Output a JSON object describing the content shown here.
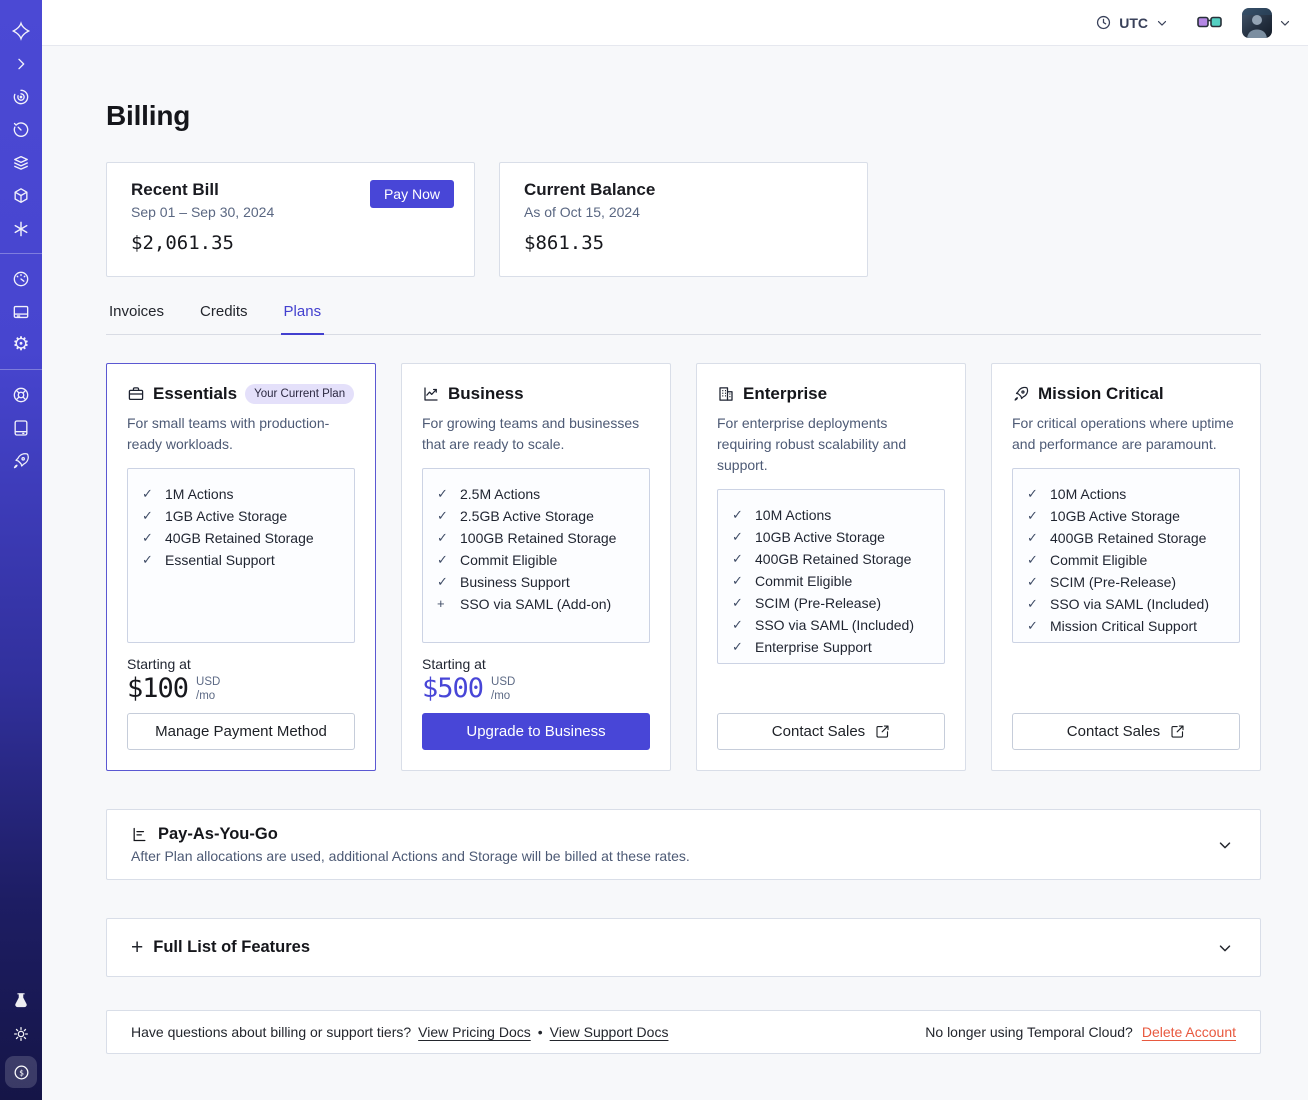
{
  "topbar": {
    "timezone": "UTC"
  },
  "page": {
    "title": "Billing"
  },
  "summary": {
    "recent_bill": {
      "title": "Recent Bill",
      "period": "Sep 01 – Sep 30, 2024",
      "amount": "$2,061.35",
      "pay_now": "Pay Now"
    },
    "current_balance": {
      "title": "Current Balance",
      "as_of": "As of Oct 15, 2024",
      "amount": "$861.35"
    }
  },
  "tabs": [
    {
      "label": "Invoices",
      "active": false
    },
    {
      "label": "Credits",
      "active": false
    },
    {
      "label": "Plans",
      "active": true
    }
  ],
  "plans": [
    {
      "name": "Essentials",
      "badge": "Your Current Plan",
      "description": "For small teams with production-ready workloads.",
      "features": [
        {
          "mark": "check",
          "label": "1M Actions"
        },
        {
          "mark": "check",
          "label": "1GB Active Storage"
        },
        {
          "mark": "check",
          "label": "40GB Retained Storage"
        },
        {
          "mark": "check",
          "label": "Essential Support"
        }
      ],
      "starting_at": "Starting at",
      "price": "$100",
      "currency": "USD",
      "per": "/mo",
      "button": "Manage Payment Method"
    },
    {
      "name": "Business",
      "description": "For growing teams and businesses that are ready to scale.",
      "features": [
        {
          "mark": "check",
          "label": "2.5M Actions"
        },
        {
          "mark": "check",
          "label": "2.5GB Active Storage"
        },
        {
          "mark": "check",
          "label": "100GB Retained Storage"
        },
        {
          "mark": "check",
          "label": "Commit Eligible"
        },
        {
          "mark": "check",
          "label": "Business Support"
        },
        {
          "mark": "plus",
          "label": "SSO via SAML (Add-on)"
        }
      ],
      "starting_at": "Starting at",
      "price": "$500",
      "currency": "USD",
      "per": "/mo",
      "button": "Upgrade to Business"
    },
    {
      "name": "Enterprise",
      "description": "For enterprise deployments requiring robust scalability and support.",
      "features": [
        {
          "mark": "check",
          "label": "10M Actions"
        },
        {
          "mark": "check",
          "label": "10GB Active Storage"
        },
        {
          "mark": "check",
          "label": "400GB Retained Storage"
        },
        {
          "mark": "check",
          "label": "Commit Eligible"
        },
        {
          "mark": "check",
          "label": "SCIM (Pre-Release)"
        },
        {
          "mark": "check",
          "label": "SSO via SAML (Included)"
        },
        {
          "mark": "check",
          "label": "Enterprise Support"
        }
      ],
      "button": "Contact Sales"
    },
    {
      "name": "Mission Critical",
      "description": "For critical operations where uptime and performance are paramount.",
      "features": [
        {
          "mark": "check",
          "label": "10M Actions"
        },
        {
          "mark": "check",
          "label": "10GB Active Storage"
        },
        {
          "mark": "check",
          "label": "400GB Retained Storage"
        },
        {
          "mark": "check",
          "label": "Commit Eligible"
        },
        {
          "mark": "check",
          "label": "SCIM (Pre-Release)"
        },
        {
          "mark": "check",
          "label": "SSO via SAML (Included)"
        },
        {
          "mark": "check",
          "label": "Mission Critical Support"
        }
      ],
      "button": "Contact Sales"
    }
  ],
  "accordions": [
    {
      "title": "Pay-As-You-Go",
      "subtitle": "After Plan allocations are used, additional Actions and Storage will be billed at these rates."
    },
    {
      "title": "Full List of Features"
    }
  ],
  "footer": {
    "question": "Have questions about billing or support tiers?",
    "pricing_link": "View Pricing Docs",
    "separator": "•",
    "support_link": "View Support Docs",
    "delete_prompt": "No longer using Temporal Cloud?",
    "delete_link": "Delete Account"
  },
  "sidebar": {
    "icons": [
      "temporal-logo",
      "chevron-expand",
      "namespaces",
      "schedules",
      "layers",
      "deployments-cube",
      "nexus-asterisk",
      "usage-gauge",
      "billing-card",
      "settings-gear",
      "support-lifebuoy",
      "docs-book",
      "getting-started-rocket",
      "labs-flask",
      "theme-sun",
      "billing-active-coin"
    ]
  },
  "colors": {
    "accent": "#4846d7",
    "delete": "#e8593f",
    "badge_bg": "#e4e0fa"
  }
}
